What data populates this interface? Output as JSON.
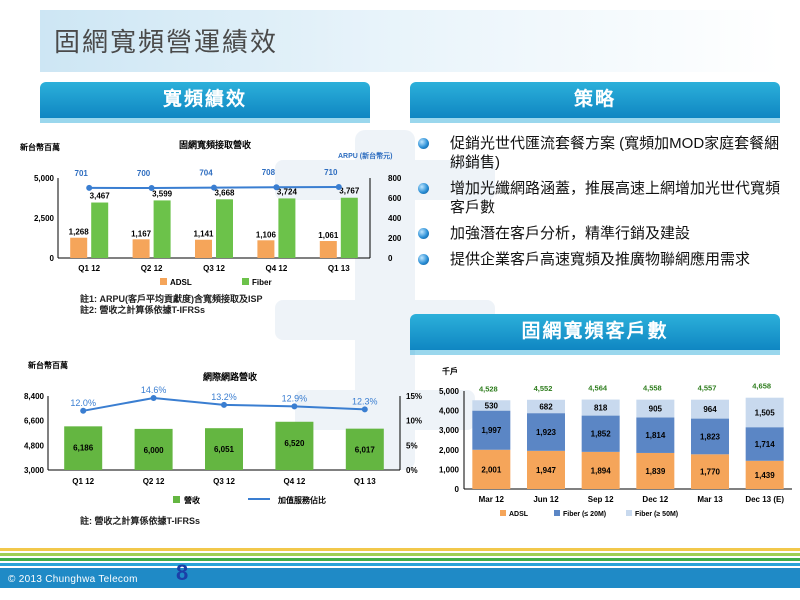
{
  "page": {
    "title": "固網寬頻營運績效",
    "section_left": "寬頻績效",
    "section_strategy": "策略",
    "section_customers": "固網寬頻客戶數",
    "copyright": "© 2013 Chunghwa Telecom",
    "page_number": "8"
  },
  "strategy": {
    "items": [
      "促銷光世代匯流套餐方案 (寬頻加MOD家庭套餐綑綁銷售)",
      "增加光纖網路涵蓋，推展高速上網增加光世代寬頻客戶數",
      "加強潛在客戶分析，精準行銷及建設",
      "提供企業客戶高速寬頻及推廣物聯網應用需求"
    ]
  },
  "notes": {
    "broadband_note1": "註1:  ARPU(客戶平均貢獻度)含寬頻接取及ISP",
    "broadband_note2": "註2:  營收之計算係依據T-IFRSs",
    "internet_note": "註:  營收之計算係依據T-IFRSs"
  },
  "colors": {
    "adsl": "#f5a55a",
    "fiber": "#6cc24a",
    "fiber_low": "#5b86c5",
    "fiber_high": "#c8d9ee",
    "line": "#3a7ed1",
    "bar_green": "#64b641"
  },
  "chart_data": [
    {
      "type": "bar",
      "title": "固網寬頻接取營收",
      "ylabel": "新台幣百萬",
      "y2label": "ARPU (新台幣元)",
      "categories": [
        "Q1 12",
        "Q2 12",
        "Q3 12",
        "Q4 12",
        "Q1 13"
      ],
      "series": [
        {
          "name": "ADSL",
          "values": [
            1268,
            1167,
            1141,
            1106,
            1061
          ]
        },
        {
          "name": "Fiber",
          "values": [
            3467,
            3599,
            3668,
            3724,
            3767
          ]
        }
      ],
      "line": {
        "values": [
          701,
          700,
          704,
          708,
          710
        ]
      },
      "ylim": [
        0,
        5000
      ],
      "yticks": [
        "0",
        "2,500",
        "5,000"
      ],
      "y2lim": [
        0,
        800
      ],
      "y2ticks": [
        "0",
        "200",
        "400",
        "600",
        "800"
      ],
      "legend": "bottom"
    },
    {
      "type": "bar",
      "title": "網際網路營收",
      "ylabel": "新台幣百萬",
      "categories": [
        "Q1 12",
        "Q2 12",
        "Q3 12",
        "Q4 12",
        "Q1 13"
      ],
      "series": [
        {
          "name": "營收",
          "values": [
            6186,
            6000,
            6051,
            6520,
            6017
          ]
        }
      ],
      "line": {
        "name": "加值服務佔比",
        "values": [
          12.0,
          14.6,
          13.2,
          12.9,
          12.3
        ],
        "labels": [
          "12.0%",
          "14.6%",
          "13.2%",
          "12.9%",
          "12.3%"
        ]
      },
      "ylim": [
        3000,
        8400
      ],
      "yticks": [
        "3,000",
        "4,800",
        "6,600",
        "8,400"
      ],
      "y2lim": [
        0,
        15
      ],
      "y2ticks": [
        "0%",
        "5%",
        "10%",
        "15%"
      ],
      "legend": "bottom"
    },
    {
      "type": "bar",
      "stacked": true,
      "ylabel": "千戶",
      "categories": [
        "Mar 12",
        "Jun 12",
        "Sep 12",
        "Dec 12",
        "Mar 13",
        "Dec 13 (E)"
      ],
      "series": [
        {
          "name": "ADSL",
          "values": [
            2001,
            1947,
            1894,
            1839,
            1770,
            1439
          ]
        },
        {
          "name": "Fiber (≤ 20M)",
          "values": [
            1997,
            1923,
            1852,
            1814,
            1823,
            1714
          ]
        },
        {
          "name": "Fiber (≥ 50M)",
          "values": [
            530,
            682,
            818,
            905,
            964,
            1505
          ]
        }
      ],
      "totals": [
        "4,528",
        "4,552",
        "4,564",
        "4,558",
        "4,557",
        "4,658"
      ],
      "ylim": [
        0,
        5000
      ],
      "yticks": [
        "0",
        "1,000",
        "2,000",
        "3,000",
        "4,000",
        "5,000"
      ],
      "legend": "bottom"
    }
  ]
}
